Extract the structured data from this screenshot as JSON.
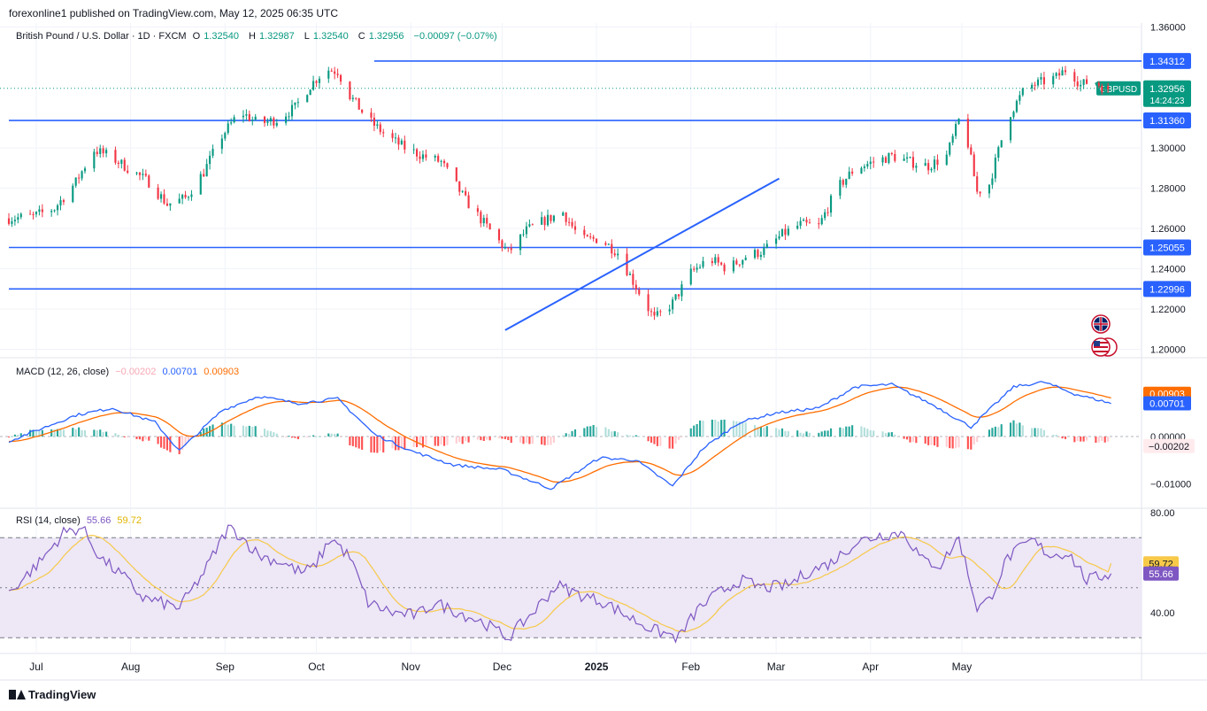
{
  "header": {
    "published": "forexonline1 published on TradingView.com, May 12, 2025 06:35 UTC"
  },
  "legend": {
    "symbol": "British Pound / U.S. Dollar · 1D · FXCM",
    "o_label": "O",
    "o": "1.32540",
    "h_label": "H",
    "h": "1.32987",
    "l_label": "L",
    "l": "1.32540",
    "c_label": "C",
    "c": "1.32956",
    "chg": "−0.00097 (−0.07%)"
  },
  "macd_legend": {
    "label": "MACD (12, 26, close)",
    "hist": "−0.00202",
    "macd": "0.00701",
    "signal": "0.00903"
  },
  "rsi_legend": {
    "label": "RSI (14, close)",
    "rsi": "55.66",
    "ma": "59.72"
  },
  "footer": {
    "brand": "TradingView"
  },
  "colors": {
    "up": "#089981",
    "down": "#f23645",
    "level": "#2962ff",
    "macd": "#2962ff",
    "signal": "#ff6d00",
    "rsi": "#7e57c2",
    "rsi_ma": "#f7c948",
    "rsi_band": "#ede7f6"
  },
  "chart_data": [
    {
      "type": "candlestick",
      "symbol": "GBPUSD",
      "x_tick_labels": [
        "Jul",
        "Aug",
        "Sep",
        "Oct",
        "Nov",
        "Dec",
        "2025",
        "Feb",
        "Mar",
        "Apr",
        "May"
      ],
      "y_tick_labels": [
        "1.36000",
        "1.30000",
        "1.28000",
        "1.26000",
        "1.24000",
        "1.22000",
        "1.20000"
      ],
      "ylim": [
        1.195,
        1.365
      ],
      "horizontal_levels": [
        {
          "price": 1.34312,
          "label": "1.34312"
        },
        {
          "price": 1.3136,
          "label": "1.31360"
        },
        {
          "price": 1.25055,
          "label": "1.25055"
        },
        {
          "price": 1.22996,
          "label": "1.22996"
        }
      ],
      "last_price": {
        "symbol": "GBPUSD",
        "price": 1.32956,
        "label": "1.32956",
        "countdown": "14:24:23"
      },
      "trendline": {
        "from": {
          "day": 163,
          "price": 1.2095
        },
        "to": {
          "day": 253,
          "price": 1.2848
        }
      },
      "close_path": [
        [
          0,
          1.265
        ],
        [
          8,
          1.266
        ],
        [
          15,
          1.27
        ],
        [
          22,
          1.283
        ],
        [
          28,
          1.299
        ],
        [
          33,
          1.296
        ],
        [
          40,
          1.289
        ],
        [
          46,
          1.283
        ],
        [
          52,
          1.272
        ],
        [
          58,
          1.275
        ],
        [
          64,
          1.288
        ],
        [
          70,
          1.306
        ],
        [
          76,
          1.318
        ],
        [
          82,
          1.312
        ],
        [
          88,
          1.314
        ],
        [
          94,
          1.32
        ],
        [
          99,
          1.331
        ],
        [
          104,
          1.339
        ],
        [
          108,
          1.338
        ],
        [
          112,
          1.326
        ],
        [
          118,
          1.314
        ],
        [
          124,
          1.306
        ],
        [
          130,
          1.3
        ],
        [
          136,
          1.296
        ],
        [
          142,
          1.293
        ],
        [
          150,
          1.274
        ],
        [
          158,
          1.259
        ],
        [
          164,
          1.248
        ],
        [
          170,
          1.259
        ],
        [
          176,
          1.264
        ],
        [
          182,
          1.268
        ],
        [
          188,
          1.254
        ],
        [
          194,
          1.255
        ],
        [
          200,
          1.248
        ],
        [
          206,
          1.231
        ],
        [
          212,
          1.215
        ],
        [
          218,
          1.223
        ],
        [
          224,
          1.238
        ],
        [
          230,
          1.245
        ],
        [
          236,
          1.24
        ],
        [
          242,
          1.246
        ],
        [
          248,
          1.249
        ],
        [
          254,
          1.257
        ],
        [
          260,
          1.262
        ],
        [
          266,
          1.261
        ],
        [
          272,
          1.28
        ],
        [
          278,
          1.29
        ],
        [
          284,
          1.293
        ],
        [
          290,
          1.296
        ],
        [
          296,
          1.293
        ],
        [
          302,
          1.291
        ],
        [
          308,
          1.296
        ],
        [
          313,
          1.318
        ],
        [
          318,
          1.278
        ],
        [
          322,
          1.282
        ],
        [
          328,
          1.315
        ],
        [
          334,
          1.33
        ],
        [
          340,
          1.333
        ],
        [
          344,
          1.335
        ],
        [
          348,
          1.34
        ],
        [
          352,
          1.331
        ],
        [
          356,
          1.334
        ],
        [
          360,
          1.329
        ],
        [
          362,
          1.3296
        ]
      ]
    },
    {
      "type": "line",
      "name": "MACD (12, 26, close)",
      "y_tick_labels": [
        "0.00000",
        "−0.01000"
      ],
      "ylim": [
        -0.0135,
        0.0135
      ],
      "last": {
        "macd": 0.00701,
        "signal": 0.00903,
        "hist": -0.00202
      },
      "x": [
        0,
        22,
        34,
        48,
        56,
        70,
        82,
        95,
        108,
        120,
        132,
        146,
        162,
        178,
        194,
        206,
        218,
        228,
        240,
        252,
        266,
        278,
        290,
        304,
        316,
        330,
        340,
        350,
        362
      ],
      "macd": [
        -0.001,
        0.0045,
        0.006,
        0.003,
        -0.003,
        0.0055,
        0.0085,
        0.007,
        0.008,
        0.0005,
        -0.003,
        -0.006,
        -0.007,
        -0.011,
        -0.0045,
        -0.005,
        -0.0105,
        -0.0025,
        0.003,
        0.005,
        0.006,
        0.0105,
        0.011,
        0.0065,
        0.002,
        0.0105,
        0.0115,
        0.009,
        0.007
      ]
    },
    {
      "type": "line",
      "name": "RSI (14, close)",
      "y_tick_labels": [
        "80.00",
        "40.00"
      ],
      "ylim": [
        29,
        80
      ],
      "bands": [
        70,
        50,
        30
      ],
      "last": {
        "rsi": 55.66,
        "ma": 59.72
      },
      "x": [
        0,
        10,
        18,
        24,
        30,
        38,
        44,
        50,
        56,
        64,
        72,
        76,
        82,
        90,
        96,
        100,
        106,
        112,
        118,
        126,
        134,
        140,
        148,
        156,
        164,
        172,
        180,
        188,
        196,
        204,
        212,
        220,
        226,
        232,
        240,
        248,
        256,
        262,
        270,
        278,
        286,
        294,
        300,
        306,
        312,
        318,
        322,
        328,
        336,
        342,
        348,
        354,
        362
      ],
      "rsi": [
        48,
        60,
        72,
        74,
        62,
        54,
        46,
        44,
        42,
        56,
        74,
        71,
        63,
        60,
        56,
        58,
        70,
        62,
        44,
        40,
        39,
        44,
        40,
        36,
        30,
        40,
        51,
        47,
        44,
        38,
        33,
        30,
        41,
        47,
        53,
        50,
        51,
        56,
        60,
        68,
        71,
        72,
        61,
        59,
        70,
        42,
        45,
        62,
        69,
        63,
        64,
        53,
        55.66
      ]
    }
  ]
}
